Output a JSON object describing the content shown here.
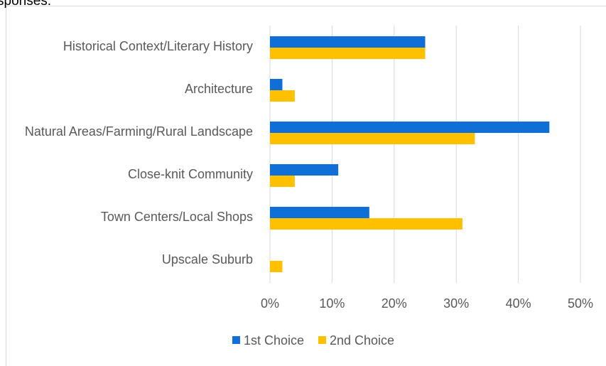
{
  "caption_fragment": "sponses:",
  "chart_data": {
    "type": "bar",
    "orientation": "horizontal",
    "categories": [
      "Historical Context/Literary History",
      "Architecture",
      "Natural Areas/Farming/Rural Landscape",
      "Close-knit Community",
      "Town Centers/Local Shops",
      "Upscale Suburb"
    ],
    "series": [
      {
        "name": "1st Choice",
        "color": "#0f6fd6",
        "values": [
          25,
          2,
          45,
          11,
          16,
          0
        ]
      },
      {
        "name": "2nd Choice",
        "color": "#ffc000",
        "values": [
          25,
          4,
          33,
          4,
          31,
          2
        ]
      }
    ],
    "xlim": [
      0,
      50
    ],
    "xticks": [
      {
        "value": 0,
        "label": "0%"
      },
      {
        "value": 10,
        "label": "10%"
      },
      {
        "value": 20,
        "label": "20%"
      },
      {
        "value": 30,
        "label": "30%"
      },
      {
        "value": 40,
        "label": "40%"
      },
      {
        "value": 50,
        "label": "50%"
      }
    ],
    "grid": true,
    "legend": "bottom"
  }
}
